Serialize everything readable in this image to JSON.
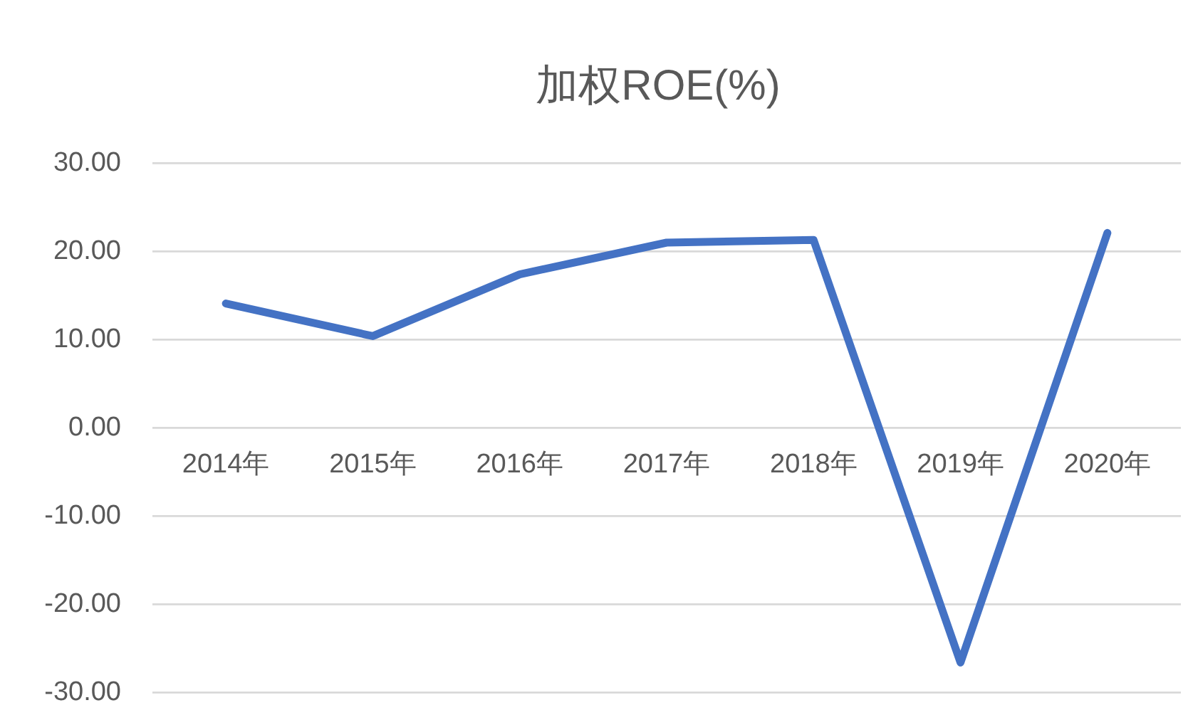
{
  "chart_data": {
    "type": "line",
    "title": "加权ROE(%)",
    "categories": [
      "2014年",
      "2015年",
      "2016年",
      "2017年",
      "2018年",
      "2019年",
      "2020年"
    ],
    "series": [
      {
        "color": "#4472c4",
        "values": [
          14.1,
          10.4,
          17.4,
          21.0,
          21.3,
          -26.6,
          22.1
        ]
      }
    ],
    "ylim": [
      -30,
      30
    ],
    "yticks": [
      {
        "value": 30,
        "label": "30.00"
      },
      {
        "value": 20,
        "label": "20.00"
      },
      {
        "value": 10,
        "label": "10.00"
      },
      {
        "value": 0,
        "label": "0.00"
      },
      {
        "value": -10,
        "label": "-10.00"
      },
      {
        "value": -20,
        "label": "-20.00"
      },
      {
        "value": -30,
        "label": "-30.00"
      }
    ],
    "grid": "y",
    "marker": "none",
    "line_style": "solid"
  }
}
